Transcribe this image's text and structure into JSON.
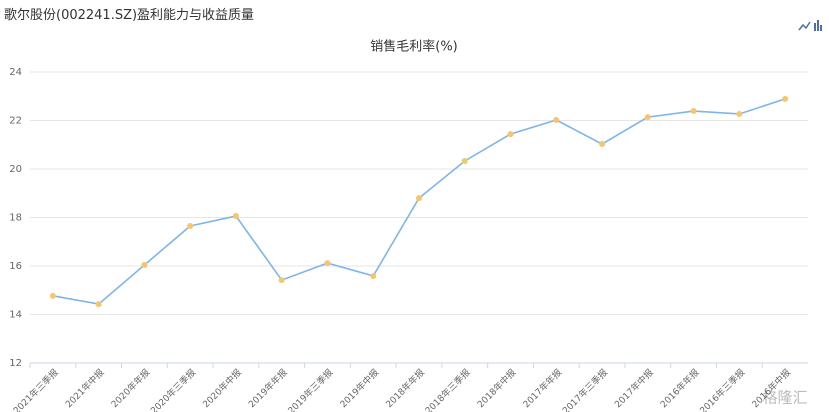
{
  "page_title": "歌尔股份(002241.SZ)盈利能力与收益质量",
  "watermark": "格隆汇",
  "chart_data": {
    "type": "line",
    "title": "销售毛利率(%)",
    "categories": [
      "2021年三季报",
      "2021年中报",
      "2020年年报",
      "2020年三季报",
      "2020年中报",
      "2019年年报",
      "2019年三季报",
      "2019年中报",
      "2018年年报",
      "2018年三季报",
      "2018年中报",
      "2017年年报",
      "2017年三季报",
      "2017年中报",
      "2016年年报",
      "2016年三季报",
      "2016年中报"
    ],
    "values": [
      14.77,
      14.43,
      16.04,
      17.65,
      18.06,
      15.42,
      16.12,
      15.59,
      18.8,
      20.33,
      21.44,
      22.02,
      21.03,
      22.14,
      22.39,
      22.27,
      22.89
    ],
    "color": "#7cb5ec",
    "marker_color": "#f7c56b",
    "ylim": [
      12,
      24
    ],
    "yticks": [
      12,
      14,
      16,
      18,
      20,
      22,
      24
    ],
    "grid": true
  }
}
